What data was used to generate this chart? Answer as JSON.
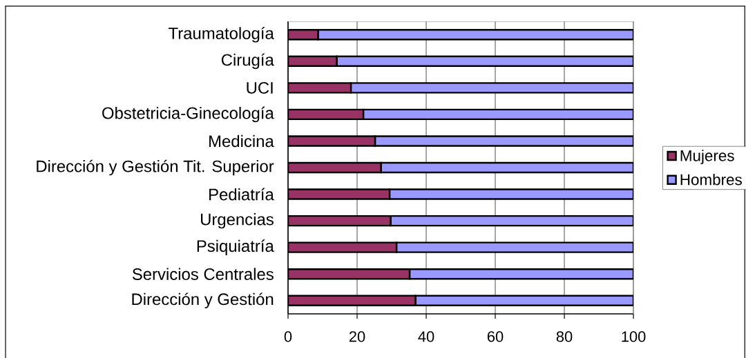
{
  "chart_data": {
    "type": "bar",
    "orientation": "horizontal",
    "stacked": true,
    "categories": [
      "Traumatología",
      "Cirugía",
      "UCI",
      "Obstetricia-Ginecología",
      "Medicina",
      "Dirección y Gestión Tit. Superior",
      "Pediatría",
      "Urgencias",
      "Psiquiatría",
      "Servicios Centrales",
      "Dirección y Gestión"
    ],
    "series": [
      {
        "name": "Mujeres",
        "color": "#993366",
        "values": [
          8.7,
          14.1,
          18.2,
          21.8,
          25.2,
          26.9,
          29.4,
          29.7,
          31.4,
          35.2,
          36.9
        ]
      },
      {
        "name": "Hombres",
        "color": "#9999ff",
        "values": [
          91.3,
          85.9,
          81.8,
          78.2,
          74.8,
          73.1,
          70.6,
          70.3,
          68.6,
          64.8,
          63.1
        ]
      }
    ],
    "xlim": [
      0,
      100
    ],
    "xticks": [
      0,
      20,
      40,
      60,
      80,
      100
    ],
    "grid": "x",
    "legend": "right"
  }
}
